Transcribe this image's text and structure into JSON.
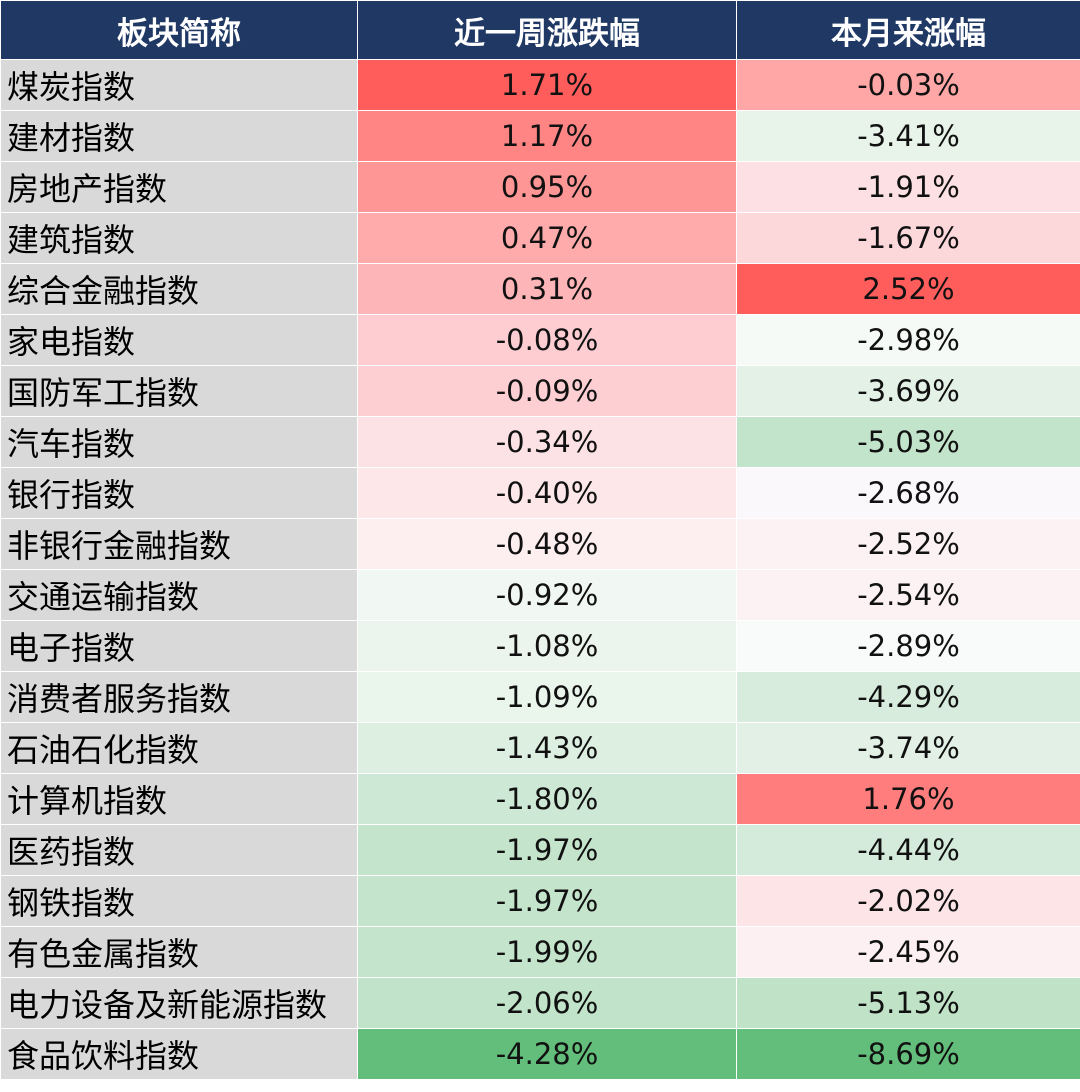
{
  "chart_data": {
    "type": "table",
    "columns": [
      "板块简称",
      "近一周涨跌幅",
      "本月来涨幅"
    ],
    "rows": [
      {
        "name": "煤炭指数",
        "week": "1.71%",
        "month": "-0.03%",
        "week_color": "#ff5c5c",
        "month_color": "#ffa6a6"
      },
      {
        "name": "建材指数",
        "week": "1.17%",
        "month": "-3.41%",
        "week_color": "#ff8585",
        "month_color": "#e8f3ea"
      },
      {
        "name": "房地产指数",
        "week": "0.95%",
        "month": "-1.91%",
        "week_color": "#ff9696",
        "month_color": "#fde0e3"
      },
      {
        "name": "建筑指数",
        "week": "0.47%",
        "month": "-1.67%",
        "week_color": "#ffabab",
        "month_color": "#fdd8db"
      },
      {
        "name": "综合金融指数",
        "week": "0.31%",
        "month": "2.52%",
        "week_color": "#feb5b8",
        "month_color": "#ff5c5c"
      },
      {
        "name": "家电指数",
        "week": "-0.08%",
        "month": "-2.98%",
        "week_color": "#fdcdd1",
        "month_color": "#f6faf7"
      },
      {
        "name": "国防军工指数",
        "week": "-0.09%",
        "month": "-3.69%",
        "week_color": "#fdcfd3",
        "month_color": "#e4f1e6"
      },
      {
        "name": "汽车指数",
        "week": "-0.34%",
        "month": "-5.03%",
        "week_color": "#fde2e5",
        "month_color": "#c2e4cb"
      },
      {
        "name": "银行指数",
        "week": "-0.40%",
        "month": "-2.68%",
        "week_color": "#fde7e9",
        "month_color": "#fbf8fb"
      },
      {
        "name": "非银行金融指数",
        "week": "-0.48%",
        "month": "-2.52%",
        "week_color": "#fdeef0",
        "month_color": "#fcf2f4"
      },
      {
        "name": "交通运输指数",
        "week": "-0.92%",
        "month": "-2.54%",
        "week_color": "#f1f8f3",
        "month_color": "#fcf2f4"
      },
      {
        "name": "电子指数",
        "week": "-1.08%",
        "month": "-2.89%",
        "week_color": "#ebf5ed",
        "month_color": "#f8fbf9"
      },
      {
        "name": "消费者服务指数",
        "week": "-1.09%",
        "month": "-4.29%",
        "week_color": "#eaf5ec",
        "month_color": "#d7ecdc"
      },
      {
        "name": "石油石化指数",
        "week": "-1.43%",
        "month": "-3.74%",
        "week_color": "#dcefe1",
        "month_color": "#e2f0e5"
      },
      {
        "name": "计算机指数",
        "week": "-1.80%",
        "month": "1.76%",
        "week_color": "#cde8d4",
        "month_color": "#ff7d7d"
      },
      {
        "name": "医药指数",
        "week": "-1.97%",
        "month": "-4.44%",
        "week_color": "#c5e4cc",
        "month_color": "#d4eada"
      },
      {
        "name": "钢铁指数",
        "week": "-1.97%",
        "month": "-2.02%",
        "week_color": "#c5e4cc",
        "month_color": "#fde4e7"
      },
      {
        "name": "有色金属指数",
        "week": "-1.99%",
        "month": "-2.45%",
        "week_color": "#c4e4cb",
        "month_color": "#fcf0f2"
      },
      {
        "name": "电力设备及新能源指数",
        "week": "-2.06%",
        "month": "-5.13%",
        "week_color": "#c1e3c9",
        "month_color": "#c0e3c8"
      },
      {
        "name": "食品饮料指数",
        "week": "-4.28%",
        "month": "-8.69%",
        "week_color": "#63be7b",
        "month_color": "#63be7b"
      }
    ]
  }
}
